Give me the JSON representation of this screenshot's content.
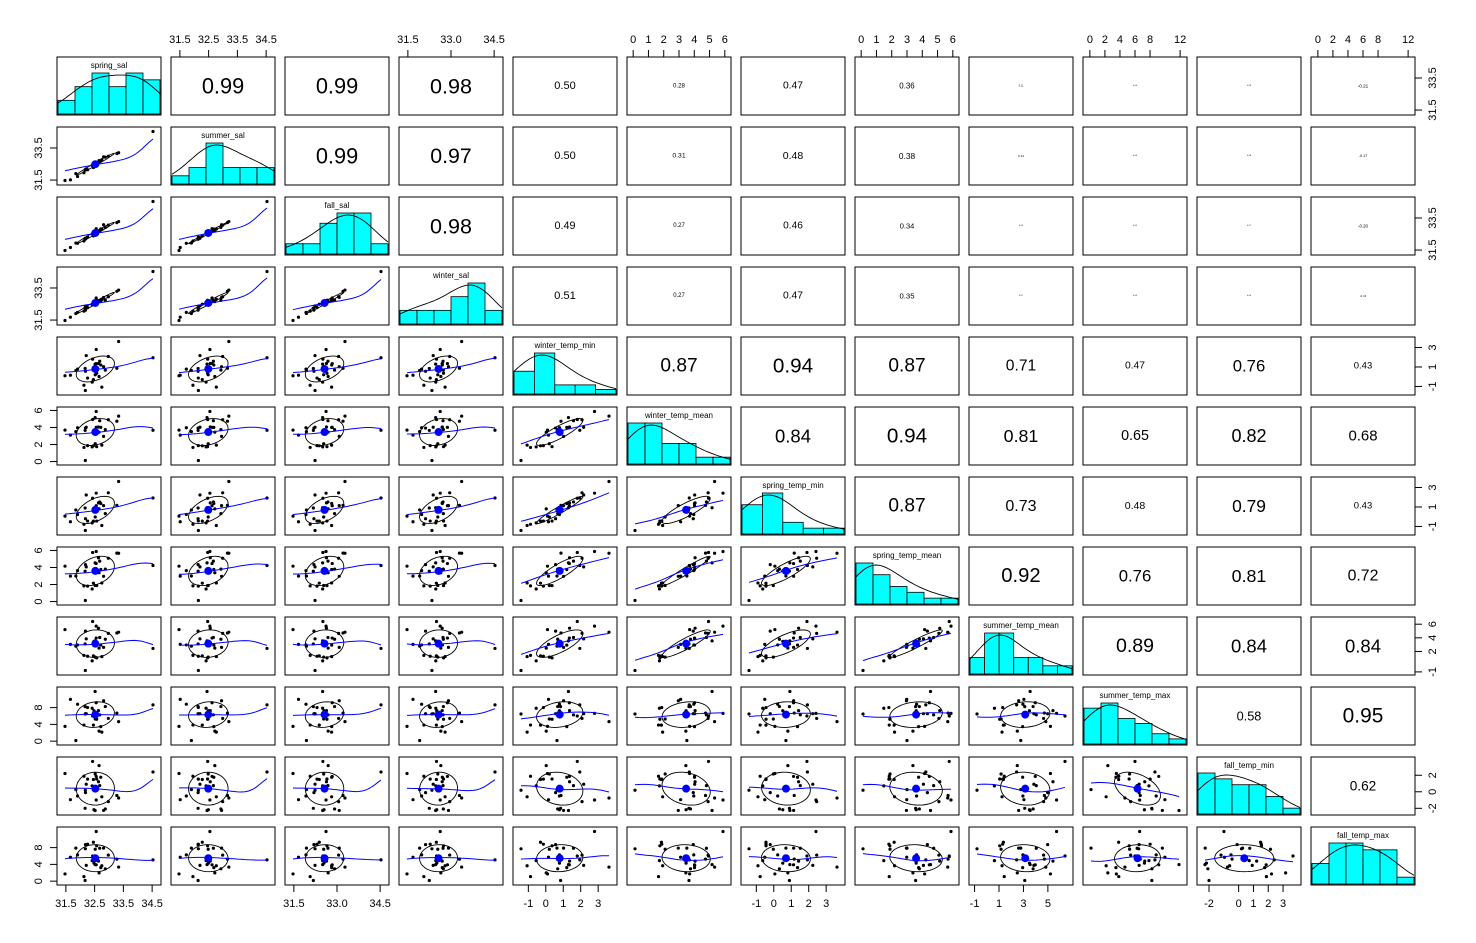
{
  "chart_data": {
    "type": "scatter-matrix",
    "variables": [
      "spring_sal",
      "summer_sal",
      "fall_sal",
      "winter_sal",
      "winter_temp_min",
      "winter_temp_mean",
      "spring_temp_min",
      "spring_temp_mean",
      "summer_temp_mean",
      "summer_temp_max",
      "fall_temp_min",
      "fall_temp_max"
    ],
    "ranges": [
      [
        31.3,
        34.7
      ],
      [
        31.3,
        34.7
      ],
      [
        31.3,
        34.7
      ],
      [
        31.3,
        34.7
      ],
      [
        -1.7,
        3.9
      ],
      [
        -0.2,
        6.2
      ],
      [
        -1.7,
        3.9
      ],
      [
        -0.2,
        6.2
      ],
      [
        -1.2,
        6.8
      ],
      [
        -0.5,
        12.5
      ],
      [
        -2.6,
        4.0
      ],
      [
        -0.5,
        12.5
      ]
    ],
    "axis_ticks": [
      {
        "side": "top",
        "var": 1,
        "values": [
          31.5,
          32.5,
          33.5,
          34.5
        ],
        "labels": [
          "31.5",
          "32.5",
          "33.5",
          "34.5"
        ]
      },
      {
        "side": "top",
        "var": 3,
        "values": [
          31.5,
          33.0,
          34.5
        ],
        "labels": [
          "31.5",
          "33.0",
          "34.5"
        ]
      },
      {
        "side": "top",
        "var": 5,
        "values": [
          0,
          1,
          2,
          3,
          4,
          5,
          6
        ],
        "labels": [
          "0",
          "1",
          "2",
          "3",
          "4",
          "5",
          "6"
        ]
      },
      {
        "side": "top",
        "var": 7,
        "values": [
          0,
          1,
          2,
          3,
          4,
          5,
          6
        ],
        "labels": [
          "0",
          "1",
          "2",
          "3",
          "4",
          "5",
          "6"
        ]
      },
      {
        "side": "top",
        "var": 9,
        "values": [
          0,
          2,
          4,
          6,
          8,
          12
        ],
        "labels": [
          "0",
          "2",
          "4",
          "6",
          "8",
          "12"
        ]
      },
      {
        "side": "top",
        "var": 11,
        "values": [
          0,
          2,
          4,
          6,
          8,
          12
        ],
        "labels": [
          "0",
          "2",
          "4",
          "6",
          "8",
          "12"
        ]
      },
      {
        "side": "bottom",
        "var": 0,
        "values": [
          31.5,
          32.5,
          33.5,
          34.5
        ],
        "labels": [
          "31.5",
          "32.5",
          "33.5",
          "34.5"
        ]
      },
      {
        "side": "bottom",
        "var": 2,
        "values": [
          31.5,
          33.0,
          34.5
        ],
        "labels": [
          "31.5",
          "33.0",
          "34.5"
        ]
      },
      {
        "side": "bottom",
        "var": 4,
        "values": [
          -1,
          0,
          1,
          2,
          3
        ],
        "labels": [
          "-1",
          "0",
          "1",
          "2",
          "3"
        ]
      },
      {
        "side": "bottom",
        "var": 6,
        "values": [
          -1,
          0,
          1,
          2,
          3
        ],
        "labels": [
          "-1",
          "0",
          "1",
          "2",
          "3"
        ]
      },
      {
        "side": "bottom",
        "var": 8,
        "values": [
          -1,
          1,
          3,
          5
        ],
        "labels": [
          "-1",
          "1",
          "3",
          "5"
        ]
      },
      {
        "side": "bottom",
        "var": 10,
        "values": [
          -2,
          0,
          1,
          2,
          3
        ],
        "labels": [
          "-2",
          "0",
          "1",
          "2",
          "3"
        ]
      },
      {
        "side": "left",
        "var": 1,
        "values": [
          31.5,
          33.5
        ],
        "labels": [
          "31.5",
          "33.5"
        ]
      },
      {
        "side": "left",
        "var": 3,
        "values": [
          31.5,
          33.5
        ],
        "labels": [
          "31.5",
          "33.5"
        ]
      },
      {
        "side": "left",
        "var": 5,
        "values": [
          0,
          2,
          4,
          6
        ],
        "labels": [
          "0",
          "2",
          "4",
          "6"
        ]
      },
      {
        "side": "left",
        "var": 7,
        "values": [
          0,
          2,
          4,
          6
        ],
        "labels": [
          "0",
          "2",
          "4",
          "6"
        ]
      },
      {
        "side": "left",
        "var": 9,
        "values": [
          0,
          4,
          8
        ],
        "labels": [
          "0",
          "4",
          "8"
        ]
      },
      {
        "side": "left",
        "var": 11,
        "values": [
          0,
          4,
          8
        ],
        "labels": [
          "0",
          "4",
          "8"
        ]
      },
      {
        "side": "right",
        "var": 0,
        "values": [
          31.5,
          33.5
        ],
        "labels": [
          "31.5",
          "33.5"
        ]
      },
      {
        "side": "right",
        "var": 2,
        "values": [
          31.5,
          33.5
        ],
        "labels": [
          "31.5",
          "33.5"
        ]
      },
      {
        "side": "right",
        "var": 4,
        "values": [
          -1,
          1,
          3
        ],
        "labels": [
          "-1",
          "1",
          "3"
        ]
      },
      {
        "side": "right",
        "var": 6,
        "values": [
          -1,
          1,
          3
        ],
        "labels": [
          "-1",
          "1",
          "3"
        ]
      },
      {
        "side": "right",
        "var": 8,
        "values": [
          -1,
          2,
          4,
          6
        ],
        "labels": [
          "-1",
          "2",
          "4",
          "6"
        ]
      },
      {
        "side": "right",
        "var": 10,
        "values": [
          -2,
          0,
          2
        ],
        "labels": [
          "-2",
          "0",
          "2"
        ]
      }
    ],
    "correlations": [
      {
        "row": 0,
        "col": 1,
        "label": "0.99"
      },
      {
        "row": 0,
        "col": 2,
        "label": "0.99"
      },
      {
        "row": 0,
        "col": 3,
        "label": "0.98"
      },
      {
        "row": 0,
        "col": 4,
        "label": "0.50"
      },
      {
        "row": 0,
        "col": 5,
        "label": "0.28"
      },
      {
        "row": 0,
        "col": 6,
        "label": "0.47"
      },
      {
        "row": 0,
        "col": 7,
        "label": "0.36"
      },
      {
        "row": 0,
        "col": 8,
        "label": "0.11"
      },
      {
        "row": 0,
        "col": 9,
        "label": "0.06"
      },
      {
        "row": 0,
        "col": 10,
        "label": "0.08"
      },
      {
        "row": 0,
        "col": 11,
        "label": "-0.21"
      },
      {
        "row": 1,
        "col": 2,
        "label": "0.99"
      },
      {
        "row": 1,
        "col": 3,
        "label": "0.97"
      },
      {
        "row": 1,
        "col": 4,
        "label": "0.50"
      },
      {
        "row": 1,
        "col": 5,
        "label": "0.31"
      },
      {
        "row": 1,
        "col": 6,
        "label": "0.48"
      },
      {
        "row": 1,
        "col": 7,
        "label": "0.38"
      },
      {
        "row": 1,
        "col": 8,
        "label": "0.14"
      },
      {
        "row": 1,
        "col": 9,
        "label": "0.06"
      },
      {
        "row": 1,
        "col": 10,
        "label": "0.08"
      },
      {
        "row": 1,
        "col": 11,
        "label": "-0.17"
      },
      {
        "row": 2,
        "col": 3,
        "label": "0.98"
      },
      {
        "row": 2,
        "col": 4,
        "label": "0.49"
      },
      {
        "row": 2,
        "col": 5,
        "label": "0.27"
      },
      {
        "row": 2,
        "col": 6,
        "label": "0.46"
      },
      {
        "row": 2,
        "col": 7,
        "label": "0.34"
      },
      {
        "row": 2,
        "col": 8,
        "label": "0.09"
      },
      {
        "row": 2,
        "col": 9,
        "label": "0.05"
      },
      {
        "row": 2,
        "col": 10,
        "label": "0.07"
      },
      {
        "row": 2,
        "col": 11,
        "label": "-0.20"
      },
      {
        "row": 3,
        "col": 4,
        "label": "0.51"
      },
      {
        "row": 3,
        "col": 5,
        "label": "0.27"
      },
      {
        "row": 3,
        "col": 6,
        "label": "0.47"
      },
      {
        "row": 3,
        "col": 7,
        "label": "0.35"
      },
      {
        "row": 3,
        "col": 8,
        "label": "0.07"
      },
      {
        "row": 3,
        "col": 9,
        "label": "0.03"
      },
      {
        "row": 3,
        "col": 10,
        "label": "0.06"
      },
      {
        "row": 3,
        "col": 11,
        "label": "-0.13"
      },
      {
        "row": 4,
        "col": 5,
        "label": "0.87"
      },
      {
        "row": 4,
        "col": 6,
        "label": "0.94"
      },
      {
        "row": 4,
        "col": 7,
        "label": "0.87"
      },
      {
        "row": 4,
        "col": 8,
        "label": "0.71"
      },
      {
        "row": 4,
        "col": 9,
        "label": "0.47"
      },
      {
        "row": 4,
        "col": 10,
        "label": "0.76"
      },
      {
        "row": 4,
        "col": 11,
        "label": "0.43"
      },
      {
        "row": 5,
        "col": 6,
        "label": "0.84"
      },
      {
        "row": 5,
        "col": 7,
        "label": "0.94"
      },
      {
        "row": 5,
        "col": 8,
        "label": "0.81"
      },
      {
        "row": 5,
        "col": 9,
        "label": "0.65"
      },
      {
        "row": 5,
        "col": 10,
        "label": "0.82"
      },
      {
        "row": 5,
        "col": 11,
        "label": "0.68"
      },
      {
        "row": 6,
        "col": 7,
        "label": "0.87"
      },
      {
        "row": 6,
        "col": 8,
        "label": "0.73"
      },
      {
        "row": 6,
        "col": 9,
        "label": "0.48"
      },
      {
        "row": 6,
        "col": 10,
        "label": "0.79"
      },
      {
        "row": 6,
        "col": 11,
        "label": "0.43"
      },
      {
        "row": 7,
        "col": 8,
        "label": "0.92"
      },
      {
        "row": 7,
        "col": 9,
        "label": "0.76"
      },
      {
        "row": 7,
        "col": 10,
        "label": "0.81"
      },
      {
        "row": 7,
        "col": 11,
        "label": "0.72"
      },
      {
        "row": 8,
        "col": 9,
        "label": "0.89"
      },
      {
        "row": 8,
        "col": 10,
        "label": "0.84"
      },
      {
        "row": 8,
        "col": 11,
        "label": "0.84"
      },
      {
        "row": 9,
        "col": 10,
        "label": "0.58"
      },
      {
        "row": 9,
        "col": 11,
        "label": "0.95"
      },
      {
        "row": 10,
        "col": 11,
        "label": "0.62"
      }
    ],
    "histograms": [
      {
        "breaks": [
          31.5,
          32.0,
          32.5,
          33.0,
          33.5,
          34.0,
          34.5
        ],
        "counts": [
          2,
          4,
          6,
          4,
          6,
          5
        ]
      },
      {
        "breaks": [
          31.5,
          32.0,
          32.5,
          33.0,
          33.5,
          34.0,
          34.5
        ],
        "counts": [
          1,
          2,
          5,
          2,
          2,
          2
        ]
      },
      {
        "breaks": [
          31.5,
          32.0,
          32.5,
          33.0,
          33.5,
          34.0,
          34.5
        ],
        "counts": [
          1,
          1,
          3,
          4,
          4,
          1
        ]
      },
      {
        "breaks": [
          31.5,
          32.0,
          32.5,
          33.0,
          33.5,
          34.0,
          34.5
        ],
        "counts": [
          1,
          1,
          1,
          2,
          3,
          1
        ]
      },
      {
        "breaks": [
          -1.5,
          -0.5,
          0.5,
          1.5,
          2.5,
          3.5
        ],
        "counts": [
          5,
          9,
          2,
          2,
          1
        ]
      },
      {
        "breaks": [
          0,
          1,
          2,
          3,
          4,
          5,
          6
        ],
        "counts": [
          6,
          6,
          3,
          3,
          1,
          1
        ]
      },
      {
        "breaks": [
          -1.5,
          -0.5,
          0.5,
          1.5,
          2.5,
          3.5
        ],
        "counts": [
          5,
          7,
          2,
          1,
          1
        ]
      },
      {
        "breaks": [
          0,
          1,
          2,
          3,
          4,
          5,
          6
        ],
        "counts": [
          7,
          5,
          3,
          2,
          1,
          1
        ]
      },
      {
        "breaks": [
          -1,
          0,
          1,
          2,
          3,
          4,
          5,
          6
        ],
        "counts": [
          2,
          5,
          5,
          2,
          2,
          1,
          1
        ]
      },
      {
        "breaks": [
          0,
          2,
          4,
          6,
          8,
          10,
          12
        ],
        "counts": [
          7,
          8,
          5,
          4,
          2,
          1
        ]
      },
      {
        "breaks": [
          -2,
          -1,
          0,
          1,
          2,
          3,
          4
        ],
        "counts": [
          7,
          6,
          5,
          5,
          3,
          1
        ]
      },
      {
        "breaks": [
          0,
          2,
          4,
          6,
          8,
          10,
          12
        ],
        "counts": [
          3,
          6,
          6,
          5,
          5,
          1
        ]
      }
    ]
  }
}
